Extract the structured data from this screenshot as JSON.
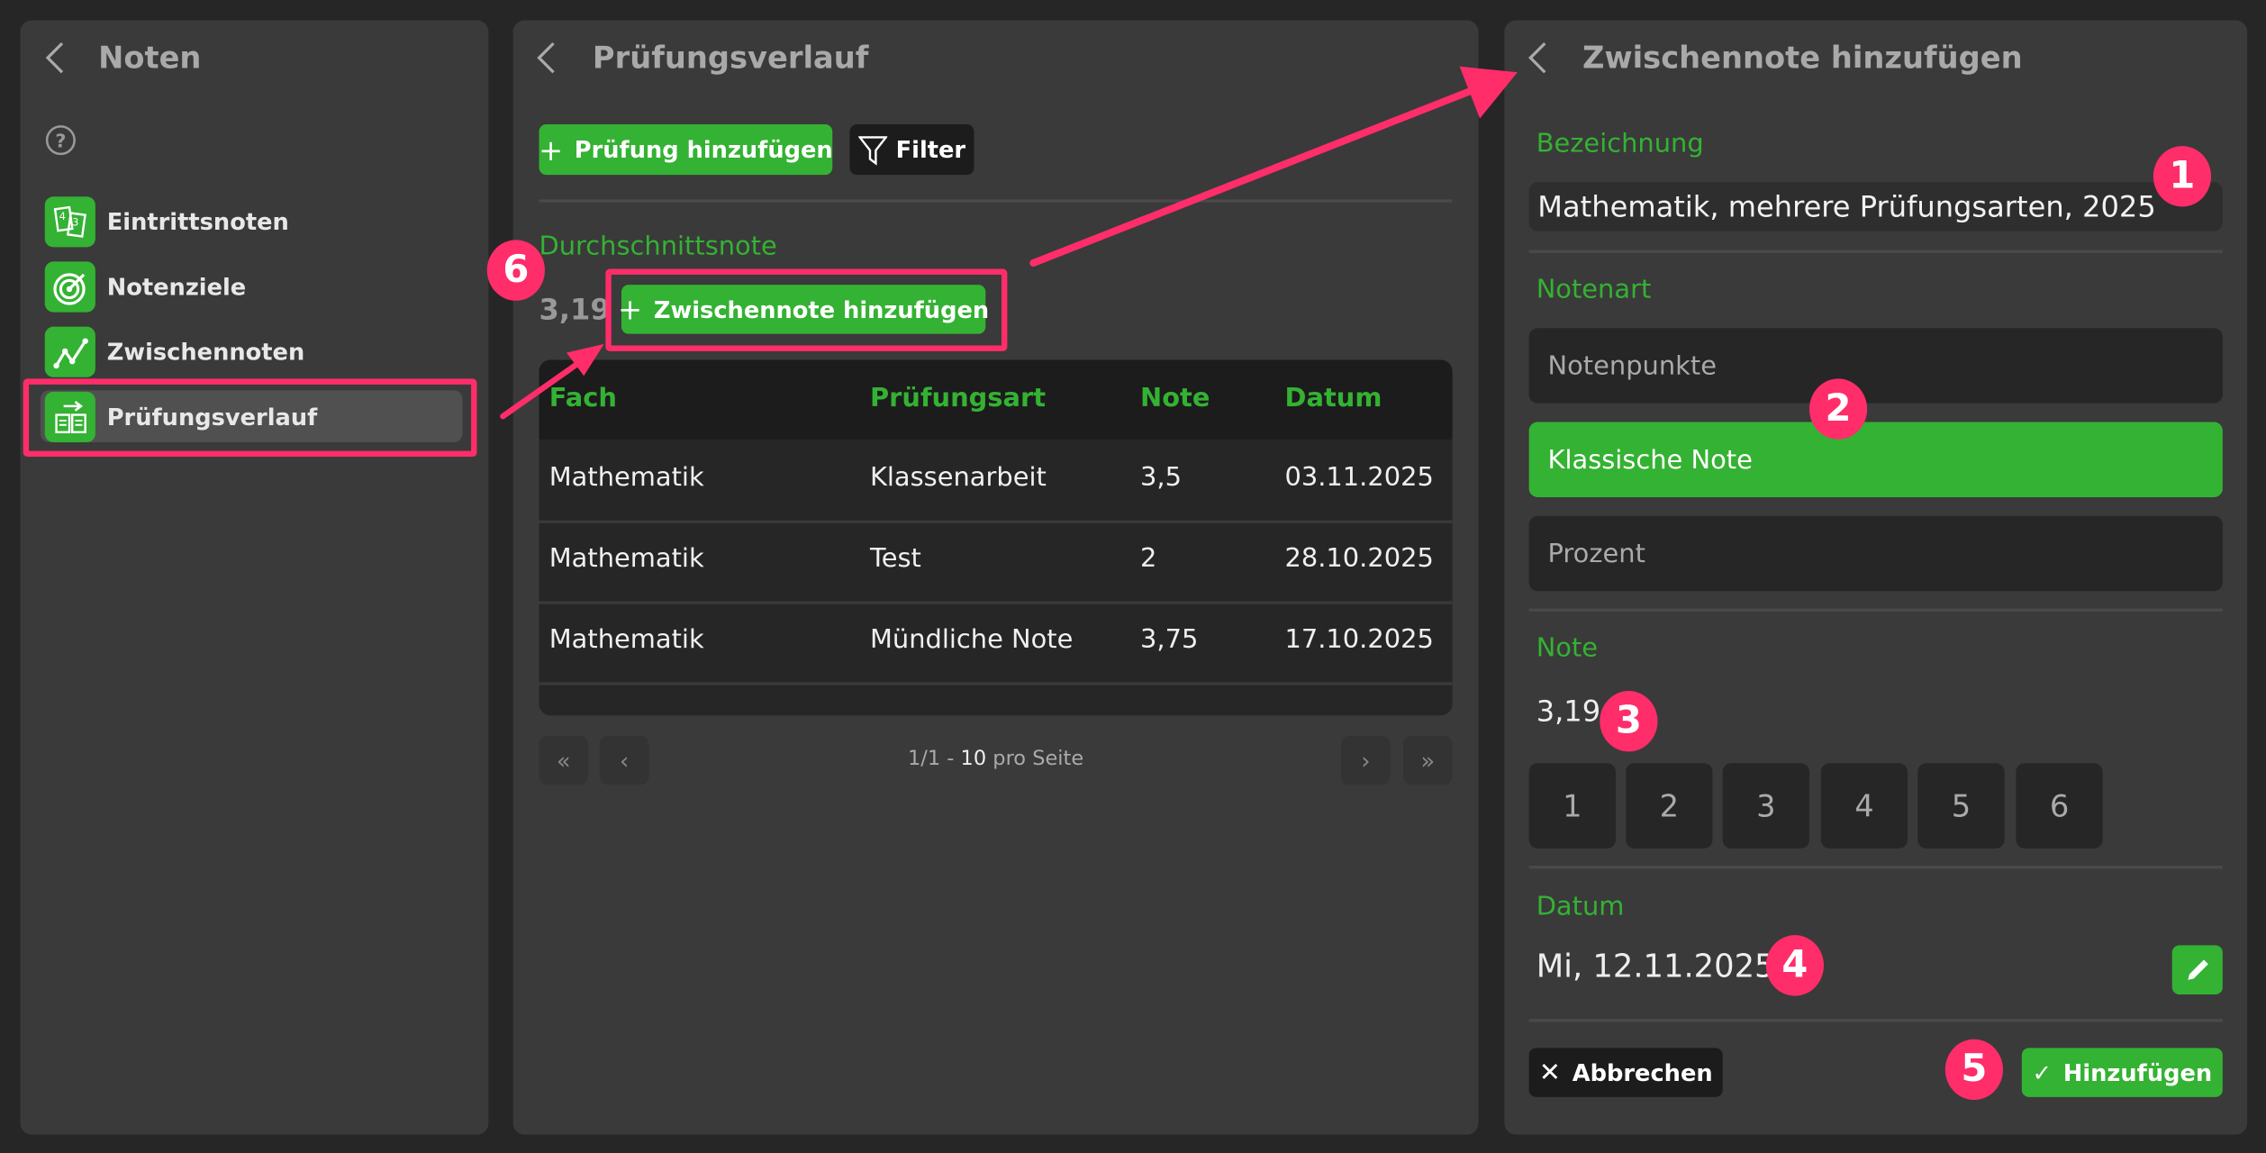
{
  "colors": {
    "accent": "#34b233",
    "annotation": "#ff2d6a",
    "panel": "#3a3a3a",
    "background": "#262626"
  },
  "sidebar": {
    "title": "Noten",
    "back_icon": "chevron-left-icon",
    "help_icon": "question-circle-icon",
    "items": [
      {
        "label": "Eintrittsnoten",
        "icon": "grade-cards-icon"
      },
      {
        "label": "Notenziele",
        "icon": "target-icon"
      },
      {
        "label": "Zwischennoten",
        "icon": "line-chart-icon"
      },
      {
        "label": "Prüfungsverlauf",
        "icon": "exam-history-icon",
        "selected": true
      }
    ]
  },
  "history": {
    "title": "Prüfungsverlauf",
    "add_exam_label": "Prüfung hinzufügen",
    "filter_label": "Filter",
    "average_label": "Durchschnittsnote",
    "average_value": "3,19",
    "add_intermediate_label": "Zwischennote hinzufügen",
    "table": {
      "headers": [
        "Fach",
        "Prüfungsart",
        "Note",
        "Datum"
      ],
      "rows": [
        [
          "Mathematik",
          "Klassenarbeit",
          "3,5",
          "03.11.2025"
        ],
        [
          "Mathematik",
          "Test",
          "2",
          "28.10.2025"
        ],
        [
          "Mathematik",
          "Mündliche Note",
          "3,75",
          "17.10.2025"
        ]
      ]
    },
    "pagination": {
      "page": "1/1 -",
      "per_page_value": "10",
      "per_page_label": "pro Seite"
    }
  },
  "form": {
    "title": "Zwischennote hinzufügen",
    "name_label": "Bezeichnung",
    "name_value": "Mathematik, mehrere Prüfungsarten, 2025",
    "type_label": "Notenart",
    "type_options": [
      "Notenpunkte",
      "Klassische Note",
      "Prozent"
    ],
    "type_selected": "Klassische Note",
    "grade_label": "Note",
    "grade_value": "3,19",
    "grade_buttons": [
      "1",
      "2",
      "3",
      "4",
      "5",
      "6"
    ],
    "date_label": "Datum",
    "date_value": "Mi, 12.11.2025",
    "cancel_label": "Abbrechen",
    "submit_label": "Hinzufügen"
  },
  "annotations": [
    "1",
    "2",
    "3",
    "4",
    "5",
    "6"
  ]
}
